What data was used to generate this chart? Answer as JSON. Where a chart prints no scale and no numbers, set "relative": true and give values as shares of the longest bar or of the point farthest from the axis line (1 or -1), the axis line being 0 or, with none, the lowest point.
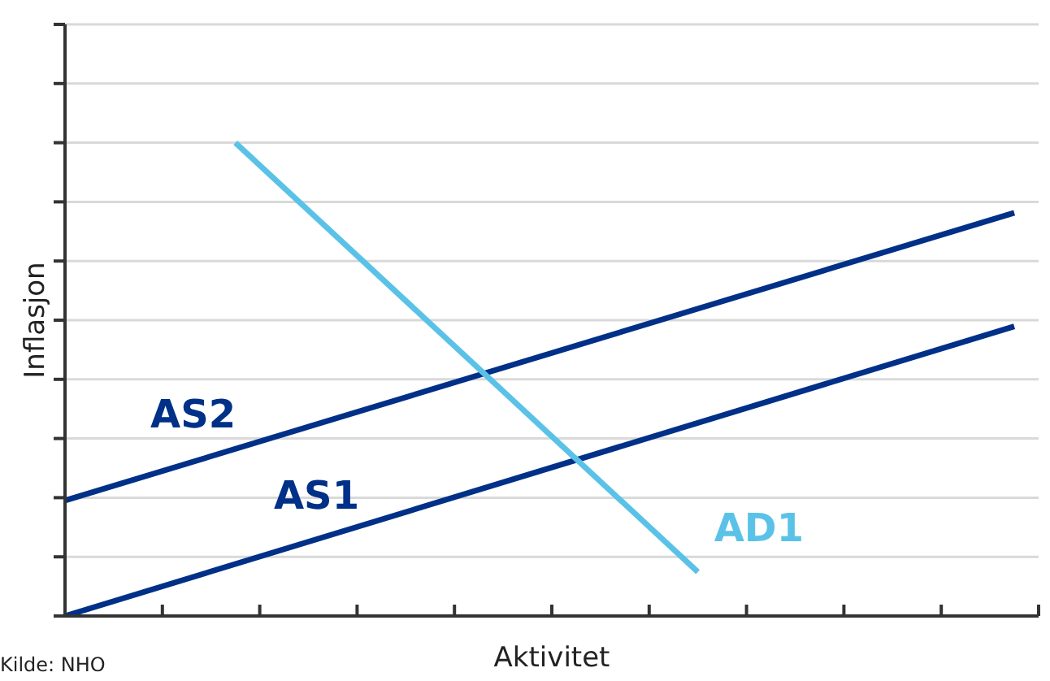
{
  "chart_data": {
    "type": "line",
    "relative": true,
    "xlabel": "Aktivitet",
    "ylabel": "Inflasjon",
    "annotations": [
      "Kilde: NHO"
    ],
    "categories": [
      null,
      null,
      null,
      null,
      null,
      null,
      null,
      null,
      null,
      null,
      null,
      null,
      null,
      null,
      null,
      null,
      null,
      null,
      null,
      null,
      null,
      null,
      null,
      null,
      null,
      null,
      null,
      null,
      null,
      null,
      null,
      null,
      null,
      null,
      null,
      null,
      null,
      null,
      null,
      null,
      null
    ],
    "tick_labels": false,
    "grid": "y",
    "legend": false,
    "marker": "none",
    "line_style": "solid",
    "series": [
      {
        "name": "AS2",
        "color": "#003087",
        "values": [
          0.244,
          null,
          null,
          null,
          null,
          null,
          null,
          null,
          null,
          null,
          null,
          null,
          null,
          null,
          null,
          null,
          null,
          null,
          null,
          null,
          null,
          null,
          null,
          null,
          null,
          null,
          null,
          null,
          null,
          null,
          null,
          null,
          null,
          null,
          null,
          null,
          null,
          null,
          null,
          0.852,
          null
        ]
      },
      {
        "name": "AS1",
        "color": "#003087",
        "values": [
          0,
          null,
          null,
          null,
          null,
          null,
          null,
          null,
          null,
          null,
          null,
          null,
          null,
          null,
          null,
          null,
          null,
          null,
          null,
          null,
          null,
          null,
          null,
          null,
          null,
          null,
          null,
          null,
          null,
          null,
          null,
          null,
          null,
          null,
          null,
          null,
          null,
          null,
          null,
          0.612,
          null
        ]
      },
      {
        "name": "AD1",
        "color": "#5bc2e7",
        "values": [
          null,
          null,
          null,
          null,
          null,
          null,
          null,
          1,
          null,
          null,
          null,
          null,
          null,
          null,
          null,
          null,
          null,
          null,
          null,
          null,
          null,
          null,
          null,
          null,
          null,
          null,
          0.093,
          null,
          null,
          null,
          null,
          null,
          null,
          null,
          null,
          null,
          null,
          null,
          null,
          null,
          null
        ]
      }
    ]
  }
}
